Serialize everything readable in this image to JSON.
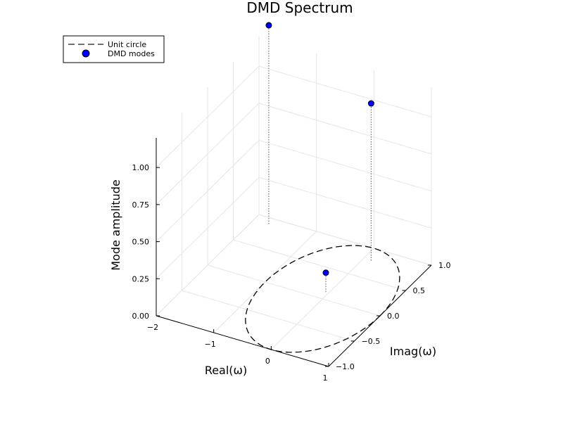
{
  "chart_data": {
    "type": "scatter3d",
    "title": "DMD Spectrum",
    "xlabel": "Real(ω)",
    "ylabel": "Imag(ω)",
    "zlabel": "Mode amplitude",
    "xlim": [
      -2,
      1
    ],
    "ylim": [
      -1,
      1
    ],
    "zlim": [
      0,
      1.2
    ],
    "xticks": [
      -2,
      -1,
      0,
      1
    ],
    "xtick_labels": [
      "−2",
      "−1",
      "0",
      "1"
    ],
    "yticks": [
      -1,
      -0.5,
      0,
      0.5,
      1
    ],
    "ytick_labels": [
      "−1.0",
      "−0.5",
      "0.0",
      "0.5",
      "1.0"
    ],
    "zticks": [
      0,
      0.25,
      0.5,
      0.75,
      1.0
    ],
    "ztick_labels": [
      "0.00",
      "0.25",
      "0.50",
      "0.75",
      "1.00"
    ],
    "grid": true,
    "legend_position": "top-left",
    "series": [
      {
        "name": "Unit circle",
        "type": "line3d",
        "style": "dashed",
        "color": "#000000",
        "z": 0,
        "radius": 1
      },
      {
        "name": "DMD modes",
        "type": "scatter3d",
        "color": "#0000ff",
        "points": [
          {
            "x": -1.74,
            "y": 0.9,
            "z": 1.34
          },
          {
            "x": -0.05,
            "y": 0.12,
            "z": 0.13
          },
          {
            "x": 0.13,
            "y": 0.8,
            "z": 1.06
          }
        ]
      }
    ]
  }
}
